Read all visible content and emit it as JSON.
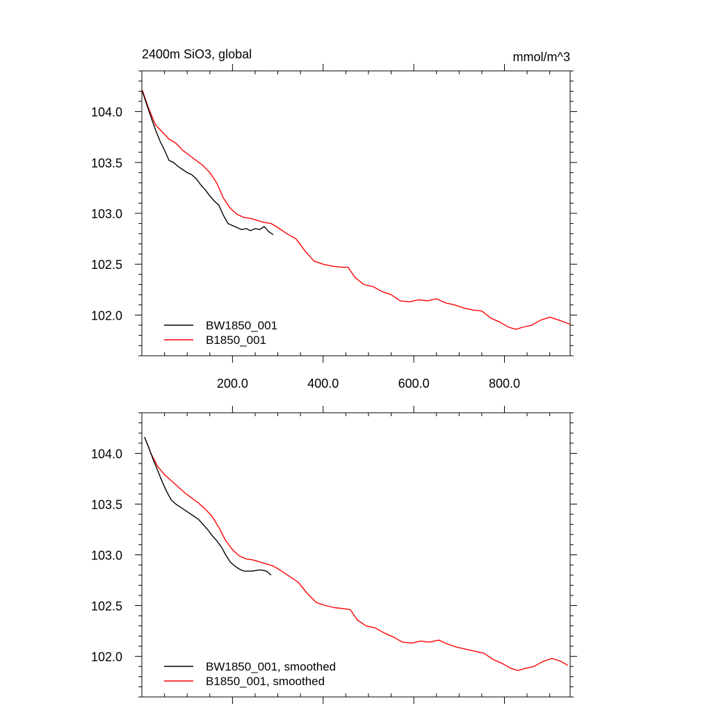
{
  "chart_data": [
    {
      "type": "line",
      "title_left": "2400m SiO3, global",
      "title_right": "mmol/m^3",
      "xlim": [
        0,
        945
      ],
      "ylim": [
        101.6,
        104.4
      ],
      "x_ticks": [
        200,
        400,
        600,
        800
      ],
      "x_tick_labels": [
        "200.0",
        "400.0",
        "600.0",
        "800.0"
      ],
      "y_ticks": [
        102.0,
        102.5,
        103.0,
        103.5,
        104.0
      ],
      "y_tick_labels": [
        "102.0",
        "102.5",
        "103.0",
        "103.5",
        "104.0"
      ],
      "legend_position": "bottom-left",
      "series": [
        {
          "name": "BW1850_001",
          "color": "#000000",
          "x": [
            1,
            10,
            20,
            30,
            40,
            50,
            60,
            70,
            80,
            90,
            100,
            110,
            120,
            130,
            140,
            150,
            160,
            170,
            180,
            190,
            200,
            210,
            220,
            230,
            240,
            250,
            260,
            270,
            280,
            290
          ],
          "y": [
            104.2,
            104.08,
            103.95,
            103.82,
            103.71,
            103.62,
            103.52,
            103.5,
            103.46,
            103.43,
            103.4,
            103.38,
            103.34,
            103.28,
            103.23,
            103.17,
            103.12,
            103.08,
            102.98,
            102.9,
            102.88,
            102.86,
            102.84,
            102.85,
            102.83,
            102.85,
            102.84,
            102.87,
            102.82,
            102.79
          ]
        },
        {
          "name": "B1850_001",
          "color": "#ff0000",
          "x": [
            1,
            15,
            30,
            45,
            60,
            75,
            90,
            105,
            120,
            135,
            150,
            165,
            180,
            195,
            210,
            225,
            240,
            255,
            270,
            285,
            300,
            320,
            340,
            360,
            380,
            400,
            420,
            440,
            455,
            470,
            490,
            510,
            530,
            550,
            570,
            590,
            610,
            630,
            650,
            670,
            690,
            710,
            730,
            750,
            770,
            790,
            810,
            825,
            840,
            860,
            880,
            900,
            920,
            945
          ],
          "y": [
            104.21,
            104.03,
            103.87,
            103.8,
            103.73,
            103.69,
            103.62,
            103.57,
            103.52,
            103.47,
            103.4,
            103.3,
            103.15,
            103.05,
            102.99,
            102.96,
            102.95,
            102.93,
            102.91,
            102.9,
            102.86,
            102.8,
            102.75,
            102.63,
            102.53,
            102.5,
            102.48,
            102.47,
            102.47,
            102.37,
            102.3,
            102.28,
            102.23,
            102.2,
            102.14,
            102.13,
            102.15,
            102.14,
            102.16,
            102.12,
            102.1,
            102.07,
            102.05,
            102.04,
            101.97,
            101.93,
            101.88,
            101.86,
            101.88,
            101.9,
            101.95,
            101.98,
            101.95,
            101.91
          ]
        }
      ]
    },
    {
      "type": "line",
      "xlim": [
        0,
        945
      ],
      "ylim": [
        101.6,
        104.4
      ],
      "x_ticks": [
        200,
        400,
        600,
        800
      ],
      "y_ticks": [
        102.0,
        102.5,
        103.0,
        103.5,
        104.0
      ],
      "y_tick_labels": [
        "102.0",
        "102.5",
        "103.0",
        "103.5",
        "104.0"
      ],
      "legend_position": "bottom-left",
      "series": [
        {
          "name": "BW1850_001, smoothed",
          "color": "#000000",
          "x": [
            6,
            15,
            25,
            35,
            45,
            55,
            65,
            75,
            85,
            95,
            105,
            115,
            125,
            135,
            145,
            155,
            165,
            175,
            185,
            195,
            205,
            215,
            225,
            235,
            245,
            255,
            265,
            275,
            285
          ],
          "y": [
            104.16,
            104.06,
            103.94,
            103.83,
            103.72,
            103.62,
            103.54,
            103.5,
            103.47,
            103.44,
            103.41,
            103.38,
            103.35,
            103.3,
            103.25,
            103.19,
            103.14,
            103.08,
            103.0,
            102.93,
            102.89,
            102.86,
            102.84,
            102.84,
            102.84,
            102.85,
            102.85,
            102.84,
            102.8
          ]
        },
        {
          "name": "B1850_001, smoothed",
          "color": "#ff0000",
          "x": [
            6,
            20,
            35,
            50,
            65,
            80,
            95,
            110,
            125,
            140,
            155,
            170,
            185,
            200,
            215,
            230,
            245,
            260,
            275,
            290,
            305,
            325,
            345,
            365,
            385,
            405,
            425,
            445,
            460,
            475,
            495,
            515,
            535,
            555,
            575,
            595,
            615,
            635,
            655,
            675,
            695,
            715,
            735,
            755,
            775,
            795,
            815,
            830,
            845,
            865,
            885,
            905,
            925,
            940
          ],
          "y": [
            104.16,
            104.0,
            103.87,
            103.79,
            103.73,
            103.67,
            103.61,
            103.56,
            103.51,
            103.45,
            103.38,
            103.27,
            103.14,
            103.05,
            102.99,
            102.96,
            102.95,
            102.93,
            102.91,
            102.89,
            102.85,
            102.79,
            102.73,
            102.62,
            102.53,
            102.5,
            102.48,
            102.47,
            102.46,
            102.36,
            102.3,
            102.28,
            102.23,
            102.19,
            102.14,
            102.13,
            102.15,
            102.14,
            102.16,
            102.12,
            102.09,
            102.07,
            102.05,
            102.03,
            101.97,
            101.93,
            101.88,
            101.86,
            101.88,
            101.9,
            101.95,
            101.98,
            101.95,
            101.91
          ]
        }
      ]
    }
  ]
}
